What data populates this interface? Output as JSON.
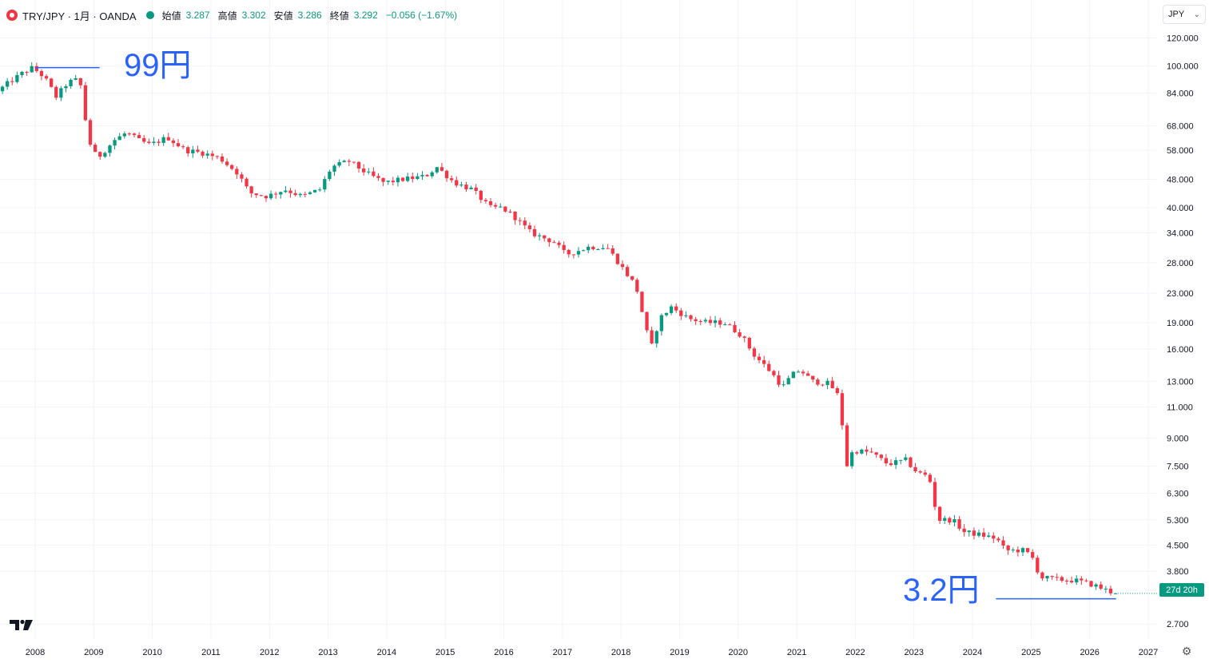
{
  "legend": {
    "symbol": "TRY/JPY · 1月 · OANDA",
    "open_label": "始値",
    "open": "3.287",
    "high_label": "高値",
    "high": "3.302",
    "low_label": "安値",
    "low": "3.286",
    "close_label": "終値",
    "close": "3.292",
    "change": "−0.056 (−1.67%)"
  },
  "currency_button": {
    "label": "JPY"
  },
  "countdown": "27d 20h",
  "annotations": {
    "top": {
      "text": "99円",
      "value": 99,
      "from_date": 2008.0,
      "to_date": 2009.1
    },
    "bottom": {
      "text": "3.2円",
      "value": 3.18,
      "from_date": 2024.4,
      "to_date": 2026.45
    }
  },
  "colors": {
    "up": "#089981",
    "down": "#f23645",
    "annotation": "#2962ff",
    "grid": "#f0f3fa",
    "axis_text": "#131722"
  },
  "icons": {
    "logo": "tradingview-logo-icon",
    "settings": "gear-icon",
    "chevron": "chevron-down-icon"
  },
  "chart_data": {
    "type": "candlestick",
    "interval": "1M",
    "y_scale": "log",
    "ylim": [
      2.45,
      130
    ],
    "xlim": [
      2007.4,
      2027.15
    ],
    "x_ticks": [
      "2008",
      "2009",
      "2010",
      "2011",
      "2012",
      "2013",
      "2014",
      "2015",
      "2016",
      "2017",
      "2018",
      "2019",
      "2020",
      "2021",
      "2022",
      "2023",
      "2024",
      "2025",
      "2026",
      "2027"
    ],
    "y_ticks": [
      "120.000",
      "100.000",
      "84.000",
      "68.000",
      "58.000",
      "48.000",
      "40.000",
      "34.000",
      "28.000",
      "23.000",
      "19.000",
      "16.000",
      "13.000",
      "11.000",
      "9.000",
      "7.500",
      "6.300",
      "5.300",
      "4.500",
      "3.800",
      "2.700"
    ],
    "price_path": [
      [
        2007.4,
        85
      ],
      [
        2007.6,
        90
      ],
      [
        2007.8,
        95
      ],
      [
        2008.0,
        99
      ],
      [
        2008.2,
        93
      ],
      [
        2008.4,
        82
      ],
      [
        2008.6,
        90
      ],
      [
        2008.8,
        92
      ],
      [
        2008.95,
        62
      ],
      [
        2009.1,
        55
      ],
      [
        2009.4,
        62
      ],
      [
        2009.6,
        65
      ],
      [
        2009.8,
        62
      ],
      [
        2010.0,
        60
      ],
      [
        2010.3,
        63
      ],
      [
        2010.6,
        58
      ],
      [
        2010.9,
        57
      ],
      [
        2011.2,
        55
      ],
      [
        2011.5,
        50
      ],
      [
        2011.7,
        44
      ],
      [
        2012.0,
        43
      ],
      [
        2012.3,
        45
      ],
      [
        2012.6,
        43
      ],
      [
        2012.9,
        45
      ],
      [
        2013.1,
        52
      ],
      [
        2013.4,
        54
      ],
      [
        2013.7,
        50
      ],
      [
        2014.0,
        47
      ],
      [
        2014.3,
        48
      ],
      [
        2014.7,
        49
      ],
      [
        2014.9,
        52
      ],
      [
        2015.2,
        47
      ],
      [
        2015.5,
        45
      ],
      [
        2015.8,
        40
      ],
      [
        2016.0,
        40
      ],
      [
        2016.2,
        38
      ],
      [
        2016.5,
        34
      ],
      [
        2016.9,
        32
      ],
      [
        2017.1,
        29.5
      ],
      [
        2017.5,
        31
      ],
      [
        2017.8,
        31
      ],
      [
        2018.0,
        28
      ],
      [
        2018.3,
        24
      ],
      [
        2018.55,
        16
      ],
      [
        2018.7,
        19.5
      ],
      [
        2018.9,
        21
      ],
      [
        2019.2,
        19.5
      ],
      [
        2019.5,
        19
      ],
      [
        2019.8,
        19
      ],
      [
        2020.1,
        17.5
      ],
      [
        2020.3,
        15.5
      ],
      [
        2020.6,
        13.8
      ],
      [
        2020.8,
        12.5
      ],
      [
        2020.95,
        13.5
      ],
      [
        2021.1,
        14
      ],
      [
        2021.3,
        13
      ],
      [
        2021.6,
        12.8
      ],
      [
        2021.8,
        11.5
      ],
      [
        2021.85,
        7.2
      ],
      [
        2022.0,
        8.3
      ],
      [
        2022.3,
        8.2
      ],
      [
        2022.6,
        7.6
      ],
      [
        2022.9,
        7.8
      ],
      [
        2023.1,
        7.2
      ],
      [
        2023.3,
        7.0
      ],
      [
        2023.45,
        5.3
      ],
      [
        2023.7,
        5.3
      ],
      [
        2023.9,
        4.9
      ],
      [
        2024.2,
        4.8
      ],
      [
        2024.45,
        4.7
      ],
      [
        2024.6,
        4.35
      ],
      [
        2024.9,
        4.35
      ],
      [
        2025.05,
        4.2
      ],
      [
        2025.2,
        3.65
      ],
      [
        2025.5,
        3.6
      ],
      [
        2025.8,
        3.58
      ],
      [
        2026.1,
        3.48
      ],
      [
        2026.35,
        3.35
      ],
      [
        2026.48,
        3.29
      ]
    ],
    "last_candle": {
      "open": 3.287,
      "high": 3.302,
      "low": 3.286,
      "close": 3.292
    }
  }
}
